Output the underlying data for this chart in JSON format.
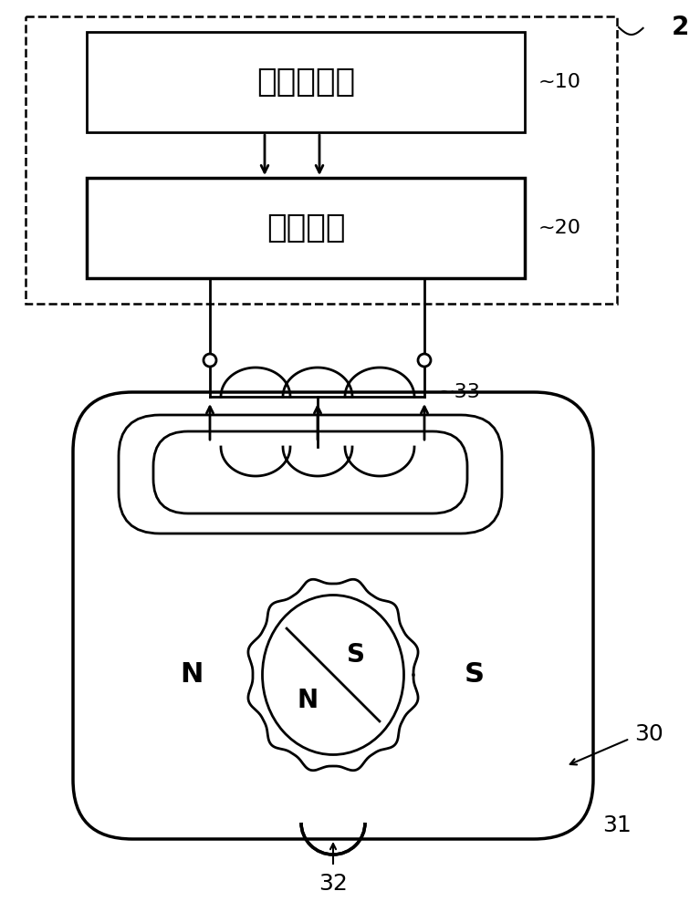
{
  "bg_color": "#ffffff",
  "line_color": "#000000",
  "fig_width": 7.67,
  "fig_height": 10.0,
  "label_2": "2",
  "label_10": "~10",
  "label_20": "~20",
  "label_30": "30",
  "label_31": "31",
  "label_32": "32",
  "label_33": "~33",
  "text_micro": "微型计算机",
  "text_drive": "驱动电路",
  "text_N_inner": "N",
  "text_S_inner": "S",
  "text_N_outer": "N",
  "text_S_outer": "S"
}
